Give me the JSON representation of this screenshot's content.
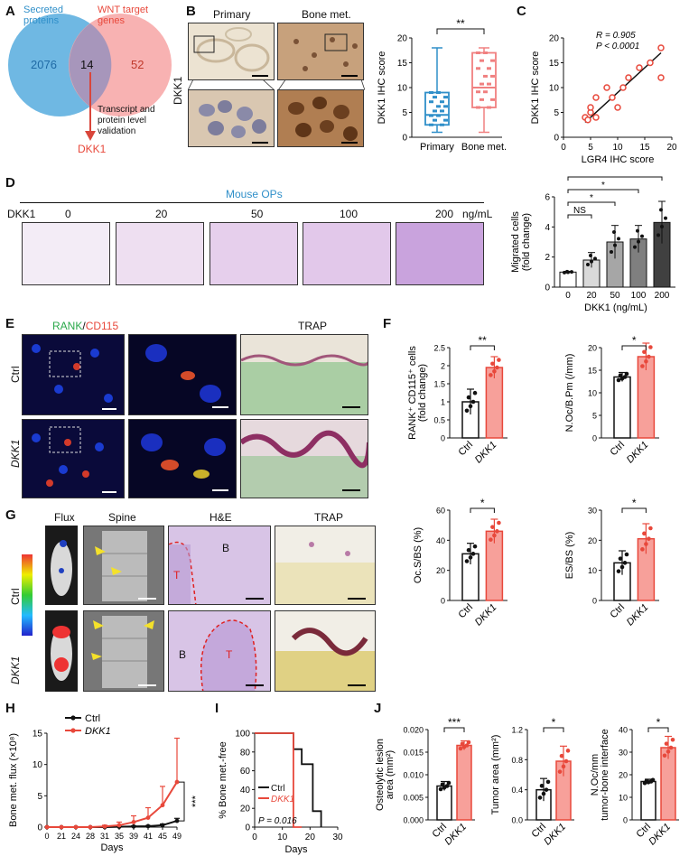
{
  "panels": {
    "A": "A",
    "B": "B",
    "C": "C",
    "D": "D",
    "E": "E",
    "F": "F",
    "G": "G",
    "H": "H",
    "I": "I",
    "J": "J"
  },
  "panelA": {
    "left_label": "Secreted proteins",
    "right_label": "WNT target genes",
    "left_count": "2076",
    "overlap_count": "14",
    "right_count": "52",
    "validation": "Transcript and protein level validation",
    "result": "DKK1"
  },
  "panelB": {
    "col1": "Primary",
    "col2": "Bone met.",
    "rowlabel": "DKK1",
    "chart_data": {
      "type": "box",
      "categories": [
        "Primary",
        "Bone met."
      ],
      "ylabel": "DKK1 IHC score",
      "ylim": [
        0,
        20
      ],
      "yticks": [
        0,
        5,
        10,
        15,
        20
      ],
      "series": [
        {
          "name": "Primary",
          "color": "#2f8fc9",
          "min": 1,
          "q1": 2.5,
          "median": 4.5,
          "q3": 9,
          "max": 18
        },
        {
          "name": "Bone met.",
          "color": "#f08080",
          "min": 1,
          "q1": 6,
          "median": 10,
          "q3": 17,
          "max": 18
        }
      ],
      "significance": "**"
    }
  },
  "panelC": {
    "chart_data": {
      "type": "scatter",
      "xlabel": "LGR4 IHC score",
      "ylabel": "DKK1 IHC score",
      "xlim": [
        0,
        20
      ],
      "ylim": [
        0,
        20
      ],
      "xticks": [
        0,
        5,
        10,
        15,
        20
      ],
      "yticks": [
        0,
        5,
        10,
        15,
        20
      ],
      "x": [
        4,
        4.5,
        5,
        5,
        6,
        6,
        8,
        9,
        10,
        11,
        12,
        14,
        16,
        18,
        18
      ],
      "y": [
        4,
        3.5,
        5,
        6,
        4,
        8,
        10,
        8,
        6,
        10,
        12,
        14,
        15,
        12,
        18
      ],
      "annotation_r": "R = 0.905",
      "annotation_p": "P < 0.0001"
    }
  },
  "panelD": {
    "title": "Mouse OPs",
    "dkk1_label": "DKK1",
    "conc_labels": [
      "0",
      "20",
      "50",
      "100",
      "200"
    ],
    "unit": "ng/mL",
    "chart_data": {
      "type": "bar",
      "categories": [
        "0",
        "20",
        "50",
        "100",
        "200"
      ],
      "values": [
        1.0,
        1.8,
        3.0,
        3.2,
        4.3
      ],
      "errors": [
        0.05,
        0.5,
        1.1,
        0.9,
        1.4
      ],
      "ylabel": "Migrated cells (fold change)",
      "xlabel": "DKK1 (ng/mL)",
      "ylim": [
        0,
        6
      ],
      "yticks": [
        0,
        2,
        4,
        6
      ],
      "colors": [
        "#ffffff",
        "#d9d9d9",
        "#a6a6a6",
        "#7f7f7f",
        "#404040"
      ],
      "comparisons": [
        "NS",
        "*",
        "*",
        "**"
      ]
    }
  },
  "panelE": {
    "rank": "RANK",
    "slash": "/",
    "cd115": "CD115",
    "trap": "TRAP",
    "row1": "Ctrl",
    "row2": "DKK1"
  },
  "panelF": {
    "chart_data": [
      {
        "type": "bar",
        "categories": [
          "Ctrl",
          "DKK1"
        ],
        "values": [
          1.0,
          1.95
        ],
        "errors": [
          0.35,
          0.3
        ],
        "ylabel": "RANK⁺ CD115⁺ cells (fold change)",
        "ylim": [
          0,
          2.5
        ],
        "yticks": [
          0,
          0.5,
          1,
          1.5,
          2,
          2.5
        ],
        "significance": "**"
      },
      {
        "type": "bar",
        "categories": [
          "Ctrl",
          "DKK1"
        ],
        "values": [
          13.5,
          18.0
        ],
        "errors": [
          1.0,
          3.0
        ],
        "ylabel": "N.Oc/B.Pm (/mm)",
        "ylim": [
          0,
          20
        ],
        "yticks": [
          0,
          5,
          10,
          15,
          20
        ],
        "significance": "*"
      },
      {
        "type": "bar",
        "categories": [
          "Ctrl",
          "DKK1"
        ],
        "values": [
          31,
          46
        ],
        "errors": [
          7,
          8
        ],
        "ylabel": "Oc.S/BS (%)",
        "ylim": [
          0,
          60
        ],
        "yticks": [
          0,
          20,
          40,
          60
        ],
        "significance": "*"
      },
      {
        "type": "bar",
        "categories": [
          "Ctrl",
          "DKK1"
        ],
        "values": [
          12.5,
          20.5
        ],
        "errors": [
          4,
          5
        ],
        "ylabel": "ES/BS (%)",
        "ylim": [
          0,
          30
        ],
        "yticks": [
          0,
          10,
          20,
          30
        ],
        "significance": "*"
      }
    ]
  },
  "panelG": {
    "flux": "Flux",
    "spine": "Spine",
    "he": "H&E",
    "trap": "TRAP",
    "row1": "Ctrl",
    "row2": "DKK1",
    "mark_T": "T",
    "mark_B": "B"
  },
  "panelH": {
    "chart_data": {
      "type": "line",
      "x": [
        0,
        21,
        24,
        28,
        31,
        35,
        39,
        41,
        45,
        49
      ],
      "xticklabels": [
        "0",
        "21",
        "24",
        "28",
        "31",
        "35",
        "39",
        "41",
        "45",
        "49"
      ],
      "xlabel": "Days",
      "ylabel": "Bone met. flux (×10⁸)",
      "ylim": [
        0,
        15
      ],
      "yticks": [
        0,
        5,
        10,
        15
      ],
      "series": [
        {
          "name": "Ctrl",
          "color": "#111111",
          "values": [
            0,
            0,
            0,
            0,
            0,
            0.05,
            0.1,
            0.15,
            0.3,
            1.0
          ],
          "errors": [
            0,
            0,
            0,
            0,
            0,
            0.05,
            0.1,
            0.1,
            0.2,
            0.4
          ]
        },
        {
          "name": "DKK1",
          "color": "#e8483b",
          "values": [
            0,
            0,
            0,
            0,
            0.1,
            0.3,
            0.8,
            1.5,
            3.5,
            7.2
          ],
          "errors": [
            0,
            0,
            0,
            0,
            0.2,
            0.5,
            1.0,
            1.6,
            3.0,
            7.0
          ]
        }
      ],
      "significance": "***"
    }
  },
  "panelI": {
    "chart_data": {
      "type": "line",
      "xlabel": "Days",
      "ylabel": "% Bone met.-free",
      "xlim": [
        0,
        30
      ],
      "ylim": [
        0,
        100
      ],
      "xticks": [
        0,
        10,
        20,
        30
      ],
      "yticks": [
        0,
        20,
        40,
        60,
        80,
        100
      ],
      "series": [
        {
          "name": "Ctrl",
          "color": "#111111",
          "steps": [
            [
              0,
              100
            ],
            [
              14,
              100
            ],
            [
              14,
              83
            ],
            [
              17,
              83
            ],
            [
              17,
              67
            ],
            [
              21,
              67
            ],
            [
              21,
              17
            ],
            [
              24,
              17
            ],
            [
              24,
              0
            ]
          ]
        },
        {
          "name": "DKK1",
          "color": "#e8483b",
          "steps": [
            [
              0,
              100
            ],
            [
              14,
              100
            ],
            [
              14,
              0
            ],
            [
              17,
              0
            ]
          ]
        }
      ],
      "annotation": "P = 0.016"
    }
  },
  "panelJ": {
    "chart_data": [
      {
        "type": "bar",
        "categories": [
          "Ctrl",
          "DKK1"
        ],
        "values": [
          0.0075,
          0.0165
        ],
        "errors": [
          0.001,
          0.001
        ],
        "ylabel": "Osteolytic lesion area (mm²)",
        "ylim": [
          0,
          0.02
        ],
        "yticks": [
          0,
          0.005,
          0.01,
          0.015,
          0.02
        ],
        "yticklabels": [
          "0.000",
          "0.005",
          "0.010",
          "0.015",
          "0.020"
        ],
        "significance": "***"
      },
      {
        "type": "bar",
        "categories": [
          "Ctrl",
          "DKK1"
        ],
        "values": [
          0.4,
          0.78
        ],
        "errors": [
          0.15,
          0.2
        ],
        "ylabel": "Tumor area (mm²)",
        "ylim": [
          0,
          1.2
        ],
        "yticks": [
          0,
          0.4,
          0.8,
          1.2
        ],
        "yticklabels": [
          "0.0",
          "0.4",
          "0.8",
          "1.2"
        ],
        "significance": "*"
      },
      {
        "type": "bar",
        "categories": [
          "Ctrl",
          "DKK1"
        ],
        "values": [
          17,
          32
        ],
        "errors": [
          1,
          5
        ],
        "ylabel": "N.Oc/mm tumor-bone interface",
        "ylim": [
          0,
          40
        ],
        "yticks": [
          0,
          10,
          20,
          30,
          40
        ],
        "significance": "*"
      }
    ]
  },
  "colors": {
    "blue": "#2f8fc9",
    "red": "#e8483b",
    "salmon": "#f7a09a",
    "venn_blue": "#5fb0e0",
    "venn_red": "#f7a5a5"
  }
}
